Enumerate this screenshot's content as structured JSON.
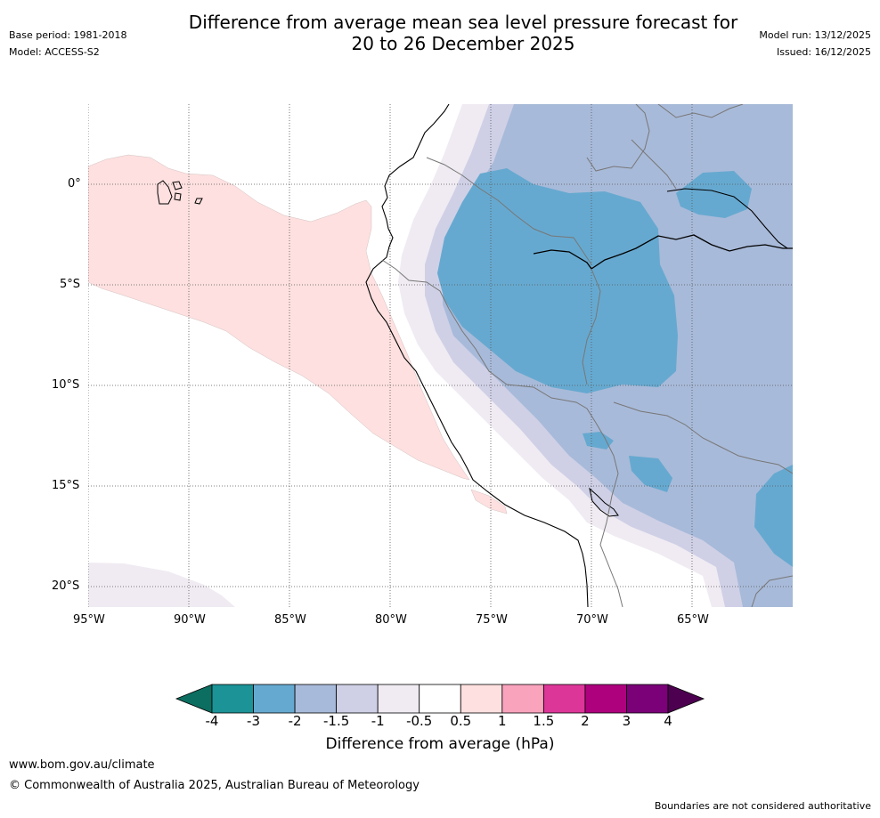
{
  "title_line1": "Difference from average mean sea level pressure forecast for",
  "title_line2": "20 to 26 December 2025",
  "base_period": "Base period: 1981-2018",
  "model": "Model: ACCESS-S2",
  "model_run": "Model run: 13/12/2025",
  "issued": "Issued: 16/12/2025",
  "lat_labels": [
    "0°",
    "5°S",
    "10°S",
    "15°S",
    "20°S"
  ],
  "lon_labels": [
    "95°W",
    "90°W",
    "85°W",
    "80°W",
    "75°W",
    "70°W",
    "65°W"
  ],
  "colorbar": {
    "label": "Difference from average (hPa)",
    "ticks": [
      "-4",
      "-3",
      "-2",
      "-1.5",
      "-1",
      "-0.5",
      "0.5",
      "1",
      "1.5",
      "2",
      "3",
      "4"
    ],
    "colors": [
      "#1b9397",
      "#66a9d0",
      "#a8bad9",
      "#cfd0e6",
      "#f0ebf2",
      "#ffffff",
      "#fde0df",
      "#f9a3bd",
      "#dd3699",
      "#ae017e",
      "#7a0177"
    ],
    "under_color": "#0b6e60",
    "over_color": "#4d0050"
  },
  "footer": {
    "url": "www.bom.gov.au/climate",
    "copyright": "© Commonwealth of Australia 2025, Australian Bureau of Meteorology",
    "disclaimer": "Boundaries are not considered authoritative"
  }
}
